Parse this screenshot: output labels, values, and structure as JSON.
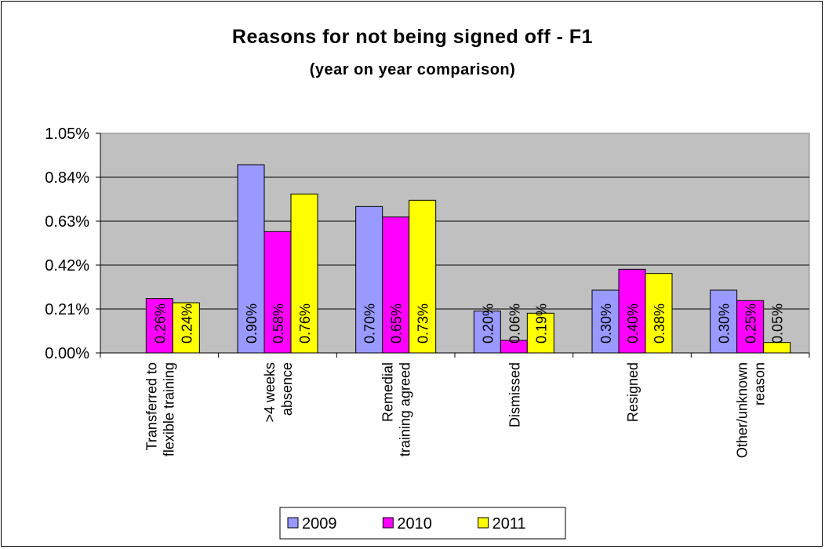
{
  "chart_data": {
    "type": "bar",
    "title": "Reasons for not being signed off - F1",
    "subtitle": "(year on year comparison)",
    "xlabel": "",
    "ylabel": "",
    "ylim": [
      0,
      1.05
    ],
    "y_ticks": [
      "0.00%",
      "0.21%",
      "0.42%",
      "0.63%",
      "0.84%",
      "1.05%"
    ],
    "y_tick_values": [
      0,
      0.21,
      0.42,
      0.63,
      0.84,
      1.05
    ],
    "grid": true,
    "plot_background": "#c0c0c0",
    "legend_position": "bottom",
    "categories": [
      [
        "Transferred to",
        "flexible training"
      ],
      [
        ">4 weeks",
        "absence"
      ],
      [
        "Remedial",
        "training agreed"
      ],
      [
        "Dismissed"
      ],
      [
        "Resigned"
      ],
      [
        "Other/unknown",
        "reason"
      ]
    ],
    "series": [
      {
        "name": "2009",
        "color": "#9999ff",
        "values": [
          null,
          0.9,
          0.7,
          0.2,
          0.3,
          0.3
        ],
        "labels": [
          "",
          "0.90%",
          "0.70%",
          "0.20%",
          "0.30%",
          "0.30%"
        ]
      },
      {
        "name": "2010",
        "color": "#ff00ff",
        "values": [
          0.26,
          0.58,
          0.65,
          0.06,
          0.4,
          0.25
        ],
        "labels": [
          "0.26%",
          "0.58%",
          "0.65%",
          "0.06%",
          "0.40%",
          "0.25%"
        ]
      },
      {
        "name": "2011",
        "color": "#ffff00",
        "values": [
          0.24,
          0.76,
          0.73,
          0.19,
          0.38,
          0.05
        ],
        "labels": [
          "0.24%",
          "0.76%",
          "0.73%",
          "0.19%",
          "0.38%",
          "0.05%"
        ]
      }
    ]
  }
}
